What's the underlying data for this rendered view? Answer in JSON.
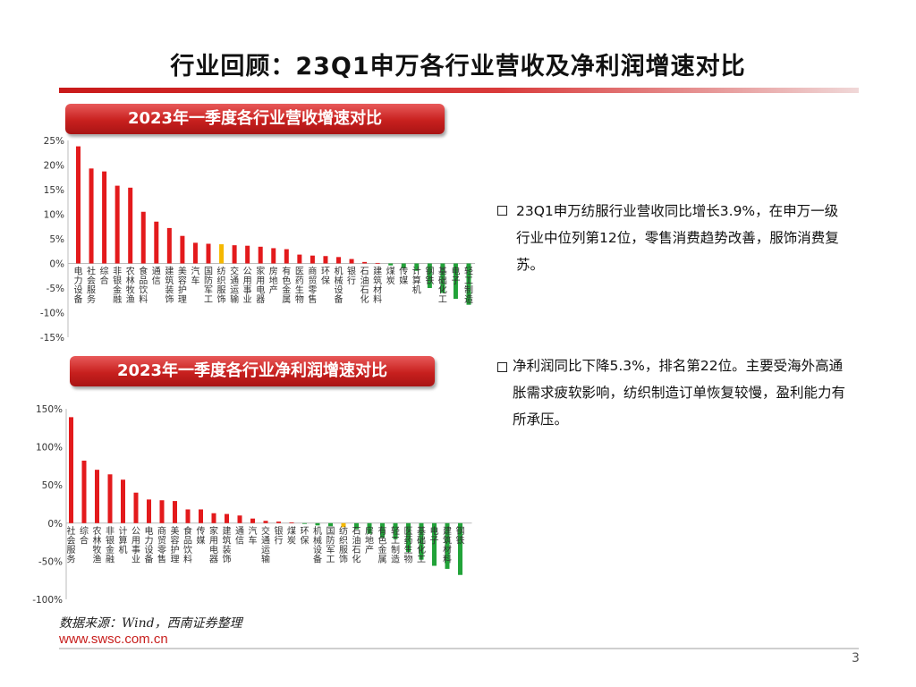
{
  "title": "行业回顾：23Q1申万各行业营收及净利润增速对比",
  "colors": {
    "positive": "#e31a1c",
    "negative": "#22a339",
    "highlight": "#f5b800",
    "banner": "#c8201e"
  },
  "chart_data": [
    {
      "type": "bar",
      "title": "2023年一季度各行业营收增速对比",
      "ylim": [
        -15,
        25
      ],
      "yticks": [
        25,
        20,
        15,
        10,
        5,
        0,
        -5,
        -10,
        -15
      ],
      "ytick_labels": [
        "25%",
        "20%",
        "15%",
        "10%",
        "5%",
        "0%",
        "-5%",
        "-10%",
        "-15%"
      ],
      "highlight": "纺织服饰",
      "categories": [
        "电力设备",
        "社会服务",
        "综合",
        "非银金融",
        "农林牧渔",
        "食品饮料",
        "通信",
        "建筑装饰",
        "美容护理",
        "汽车",
        "国防军工",
        "纺织服饰",
        "交通运输",
        "公用事业",
        "家用电器",
        "房地产",
        "有色金属",
        "医药生物",
        "商贸零售",
        "环保",
        "机械设备",
        "银行",
        "石油石化",
        "建筑材料",
        "煤炭",
        "传媒",
        "计算机",
        "钢铁",
        "基础化工",
        "电子",
        "轻工制造"
      ],
      "values": [
        23.8,
        19.3,
        18.7,
        15.8,
        15.4,
        10.5,
        8.5,
        7.2,
        5.6,
        4.2,
        4.0,
        3.9,
        3.7,
        3.6,
        3.4,
        3.1,
        2.9,
        1.8,
        1.6,
        1.5,
        1.3,
        0.9,
        0.3,
        0.1,
        -0.4,
        -1.0,
        -1.5,
        -5.0,
        -6.0,
        -7.2,
        -8.4
      ]
    },
    {
      "type": "bar",
      "title": "2023年一季度各行业净利润增速对比",
      "ylim": [
        -100,
        150
      ],
      "yticks": [
        150,
        100,
        50,
        0,
        -50,
        -100
      ],
      "ytick_labels": [
        "150%",
        "100%",
        "50%",
        "0%",
        "-50%",
        "-100%"
      ],
      "highlight": "纺织服饰",
      "categories": [
        "社会服务",
        "综合",
        "农林牧渔",
        "非银金融",
        "计算机",
        "公用事业",
        "电力设备",
        "商贸零售",
        "美容护理",
        "食品饮料",
        "传媒",
        "家用电器",
        "建筑装饰",
        "通信",
        "汽车",
        "交通运输",
        "银行",
        "煤炭",
        "环保",
        "机械设备",
        "国防军工",
        "纺织服饰",
        "石油石化",
        "房地产",
        "有色金属",
        "轻工制造",
        "医药生物",
        "基础化工",
        "电子",
        "建筑材料",
        "钢铁"
      ],
      "values": [
        139,
        82,
        70,
        64,
        57,
        40,
        31,
        30,
        29,
        18,
        18,
        13,
        12,
        10,
        6,
        3,
        2,
        1,
        -1,
        -3,
        -4,
        -5.3,
        -8,
        -14,
        -19,
        -21,
        -38,
        -48,
        -56,
        -60,
        -68
      ]
    }
  ],
  "bullets": [
    "23Q1申万纺服行业营收同比增长3.9%，在申万一级行业中位列第12位，零售消费趋势改善，服饰消费复苏。",
    "净利润同比下降5.3%，排名第22位。主要受海外高通胀需求疲软影响，纺织制造订单恢复较慢，盈利能力有所承压。"
  ],
  "source": "数据来源：Wind，西南证券整理",
  "url": "www.swsc.com.cn",
  "page_number": "3"
}
